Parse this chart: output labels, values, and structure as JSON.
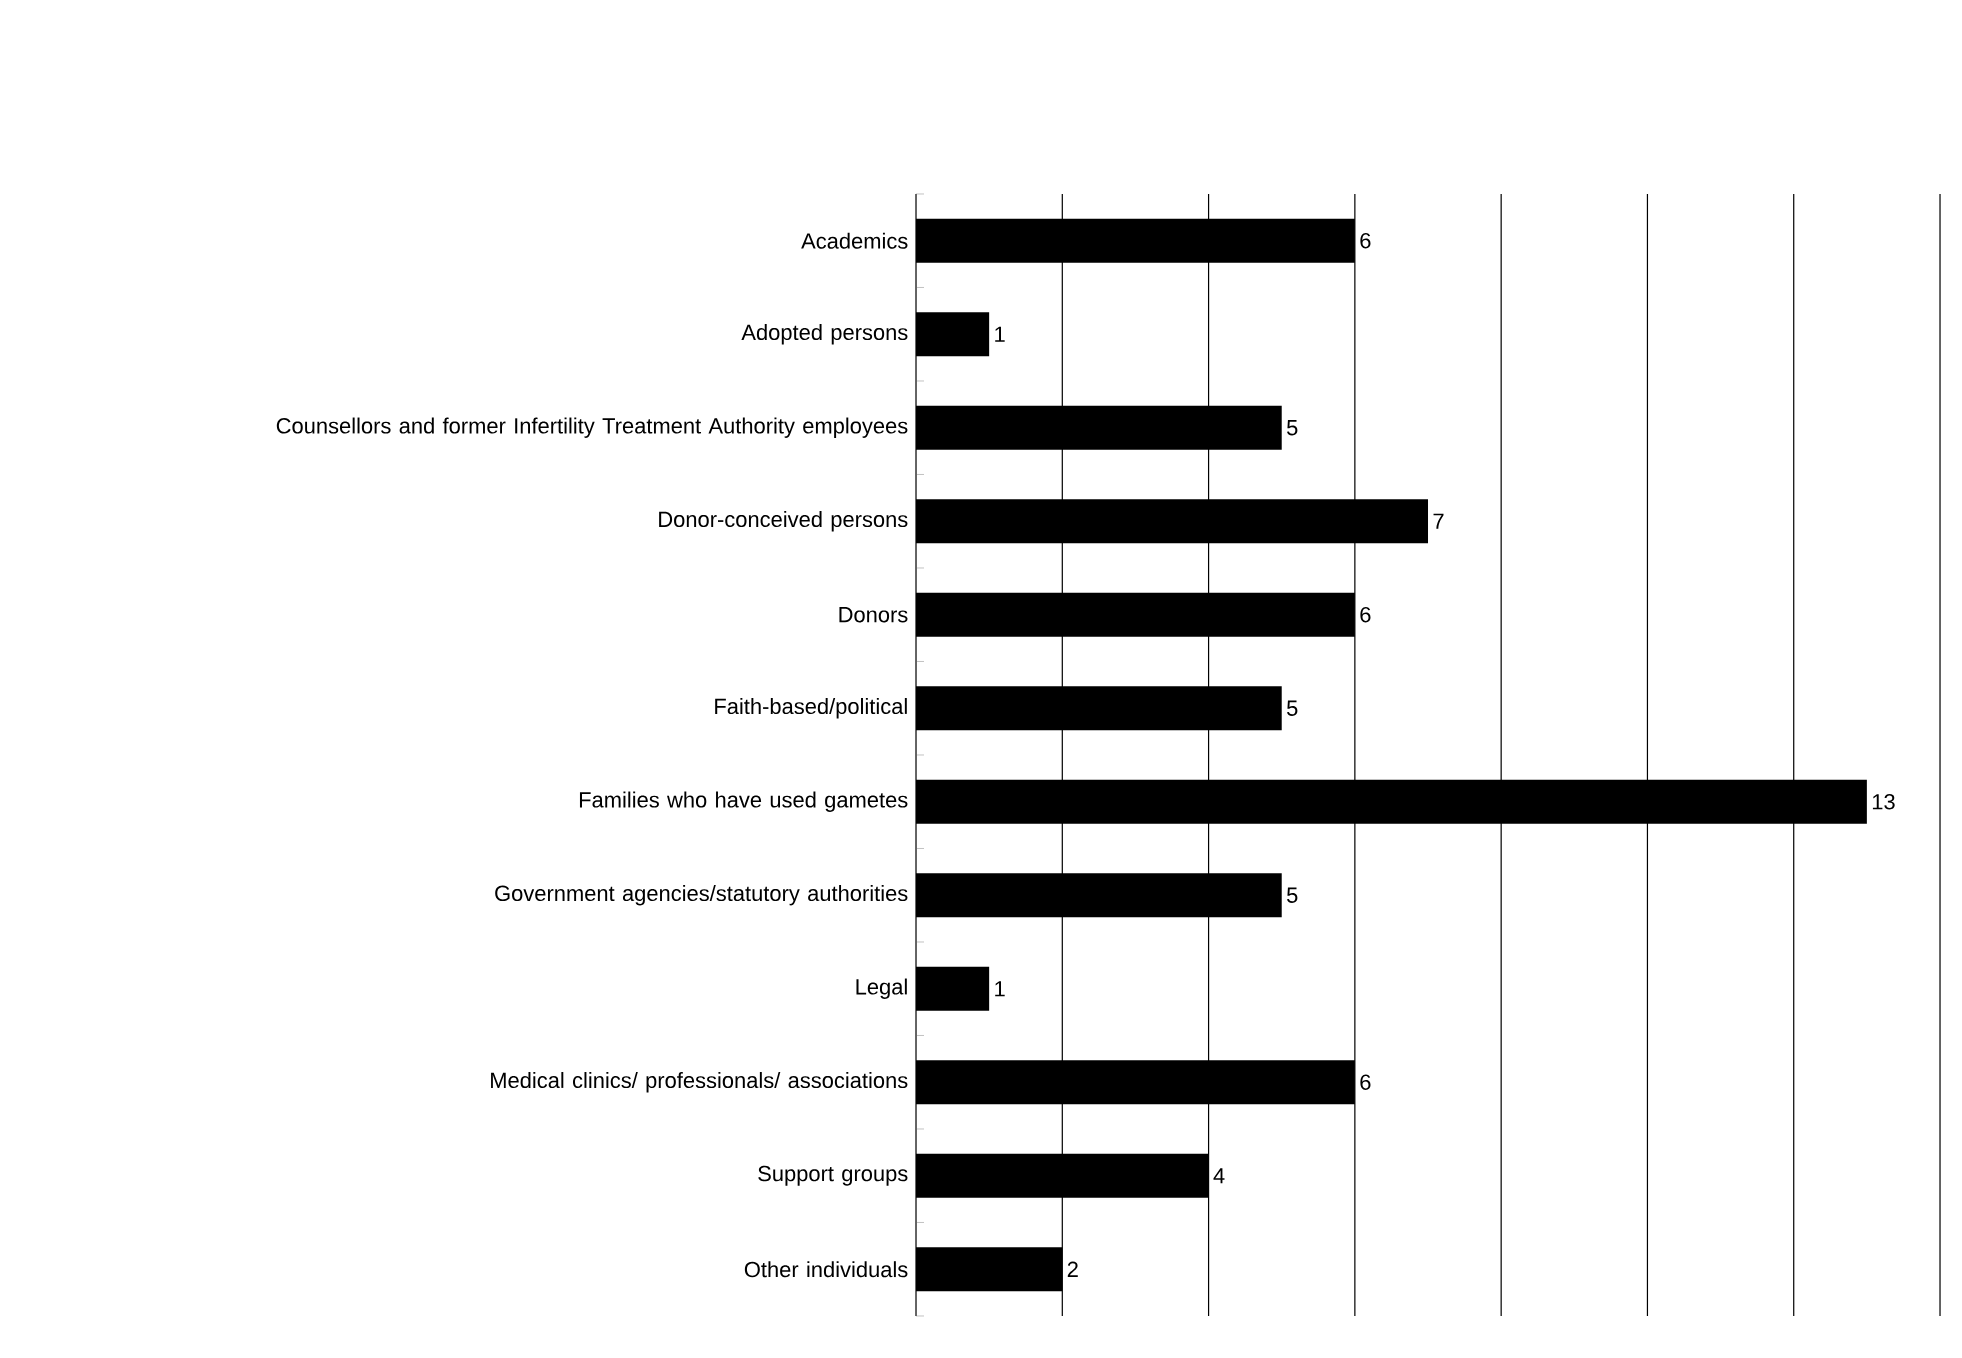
{
  "chart_data": {
    "type": "bar",
    "orientation": "horizontal",
    "categories": [
      "Academics",
      "Adopted persons",
      "Counsellors and former Infertility Treatment Authority employees",
      "Donor-conceived persons",
      "Donors",
      "Faith-based/political",
      "Families who have used gametes",
      "Government agencies/statutory authorities",
      "Legal",
      "Medical clinics/ professionals/ associations",
      "Support groups",
      "Other individuals"
    ],
    "values": [
      6,
      1,
      5,
      7,
      6,
      5,
      13,
      5,
      1,
      6,
      4,
      2
    ],
    "color": "#000000",
    "data_labels": true,
    "grid": "x",
    "tick_labels": "y",
    "xlim": [
      0,
      14
    ],
    "xticks": [
      {
        "value": 0,
        "label": null
      },
      {
        "value": 2,
        "label": null
      },
      {
        "value": 4,
        "label": null
      },
      {
        "value": 6,
        "label": null
      },
      {
        "value": 8,
        "label": null
      },
      {
        "value": 10,
        "label": null
      },
      {
        "value": 12,
        "label": null
      },
      {
        "value": 14,
        "label": null
      }
    ]
  }
}
